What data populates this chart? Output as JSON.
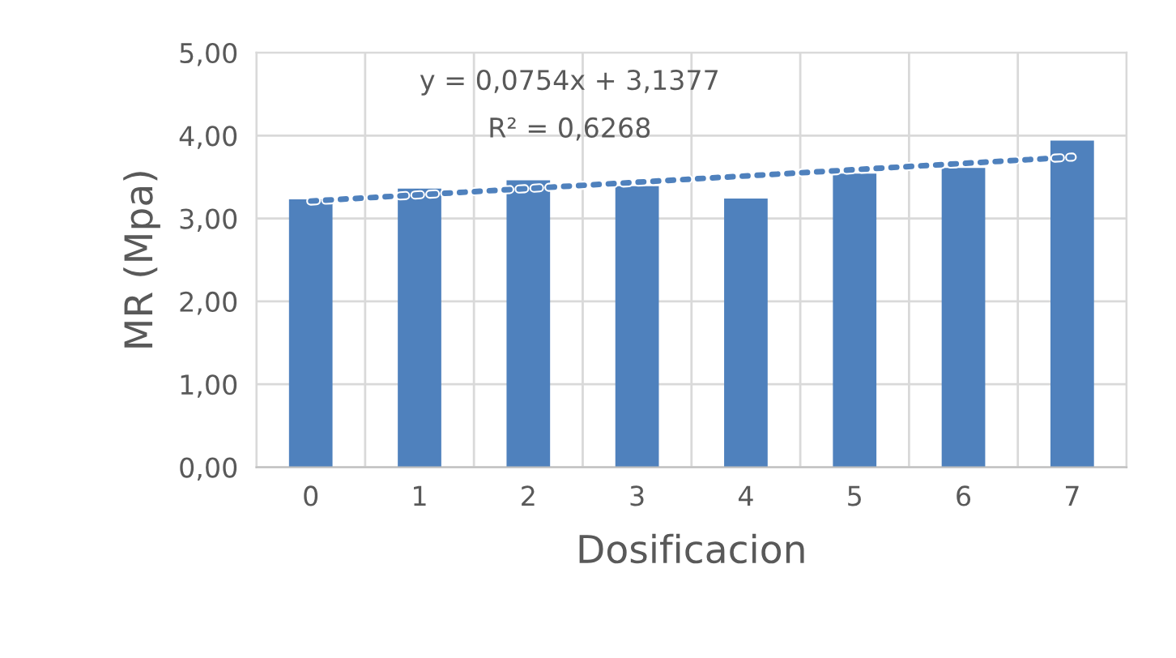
{
  "chart_data": {
    "type": "bar",
    "xlabel": "Dosificacion",
    "ylabel": "MR (Mpa)",
    "categories": [
      "0",
      "1",
      "2",
      "3",
      "4",
      "5",
      "6",
      "7"
    ],
    "series": [
      {
        "color": "#4f81bd",
        "values": [
          3.23,
          3.36,
          3.46,
          3.39,
          3.24,
          3.54,
          3.61,
          3.94
        ]
      },
      {
        "type": "line",
        "color": "#4f81bd",
        "line_style": "dotted",
        "x": [
          "0",
          "7"
        ],
        "values": [
          3.21,
          3.74
        ]
      }
    ],
    "annotations": [
      "y = 0,0754x + 3,1377",
      "R² = 0,6268"
    ],
    "ylim": [
      0,
      5
    ],
    "yticks": [
      {
        "value": 0,
        "label": "0,00"
      },
      {
        "value": 1,
        "label": "1,00"
      },
      {
        "value": 2,
        "label": "2,00"
      },
      {
        "value": 3,
        "label": "3,00"
      },
      {
        "value": 4,
        "label": "4,00"
      },
      {
        "value": 5,
        "label": "5,00"
      }
    ],
    "grid": true,
    "legend": false
  }
}
